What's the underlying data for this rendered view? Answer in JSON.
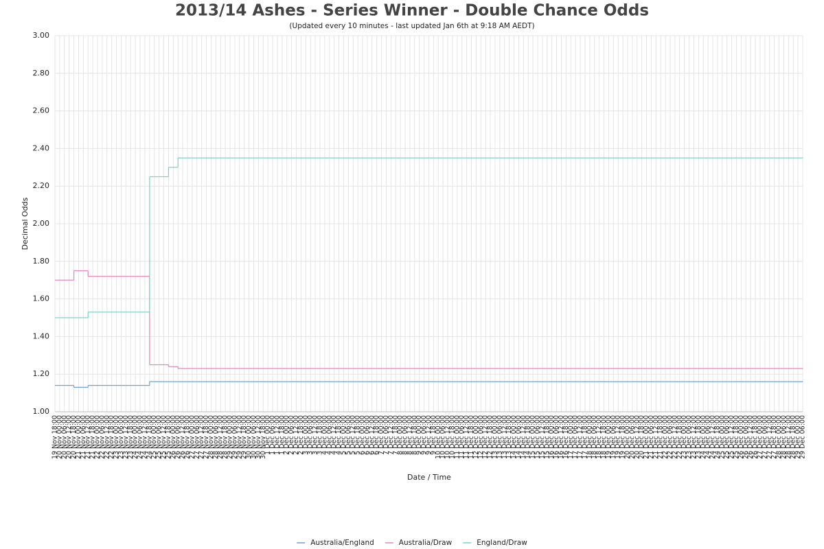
{
  "chart_data": {
    "type": "line",
    "step": true,
    "title": "2013/14 Ashes - Series Winner - Double Chance Odds",
    "subtitle": "(Updated every 10 minutes - last updated Jan 6th at 9:18 AM AEDT)",
    "y_label": "Decimal Odds",
    "x_label": "Date / Time",
    "categories": [
      "19 Nov 18:00",
      "20 Nov 00:00",
      "20 Nov 06:00",
      "20 Nov 12:00",
      "20 Nov 18:00",
      "21 Nov 00:00",
      "21 Nov 06:00",
      "21 Nov 12:00",
      "21 Nov 18:00",
      "22 Nov 00:00",
      "22 Nov 06:00",
      "22 Nov 12:00",
      "22 Nov 18:00",
      "23 Nov 00:00",
      "23 Nov 06:00",
      "23 Nov 12:00",
      "23 Nov 18:00",
      "24 Nov 00:00",
      "24 Nov 06:00",
      "24 Nov 12:00",
      "24 Nov 18:00",
      "25 Nov 00:00",
      "25 Nov 06:00",
      "25 Nov 12:00",
      "25 Nov 18:00",
      "26 Nov 00:00",
      "26 Nov 06:00",
      "26 Nov 12:00",
      "26 Nov 18:00",
      "27 Nov 00:00",
      "27 Nov 06:00",
      "27 Nov 12:00",
      "27 Nov 18:00",
      "28 Nov 00:00",
      "28 Nov 06:00",
      "28 Nov 12:00",
      "28 Nov 18:00",
      "29 Nov 00:00",
      "29 Nov 06:00",
      "29 Nov 12:00",
      "29 Nov 18:00",
      "30 Nov 00:00",
      "30 Nov 06:00",
      "30 Nov 12:00",
      "30 Nov 18:00",
      "1 Dec 00:00",
      "1 Dec 06:00",
      "1 Dec 12:00",
      "1 Dec 18:00",
      "2 Dec 00:00",
      "2 Dec 06:00",
      "2 Dec 12:00",
      "2 Dec 18:00",
      "3 Dec 00:00",
      "3 Dec 06:00",
      "3 Dec 12:00",
      "3 Dec 18:00",
      "4 Dec 00:00",
      "4 Dec 06:00",
      "4 Dec 12:00",
      "4 Dec 18:00",
      "5 Dec 00:00",
      "5 Dec 06:00",
      "5 Dec 12:00",
      "5 Dec 18:00",
      "6 Dec 00:00",
      "6 Dec 06:00",
      "6 Dec 12:00",
      "6 Dec 18:00",
      "7 Dec 00:00",
      "7 Dec 06:00",
      "7 Dec 12:00",
      "7 Dec 18:00",
      "8 Dec 00:00",
      "8 Dec 06:00",
      "8 Dec 12:00",
      "8 Dec 18:00",
      "9 Dec 00:00",
      "9 Dec 06:00",
      "9 Dec 12:00",
      "9 Dec 18:00",
      "10 Dec 00:00",
      "10 Dec 06:00",
      "10 Dec 12:00",
      "10 Dec 18:00",
      "11 Dec 00:00",
      "11 Dec 06:00",
      "11 Dec 12:00",
      "11 Dec 18:00",
      "12 Dec 00:00",
      "12 Dec 06:00",
      "12 Dec 12:00",
      "12 Dec 18:00",
      "13 Dec 00:00",
      "13 Dec 06:00",
      "13 Dec 12:00",
      "13 Dec 18:00",
      "14 Dec 00:00",
      "14 Dec 06:00",
      "14 Dec 12:00",
      "14 Dec 18:00",
      "15 Dec 00:00",
      "15 Dec 06:00",
      "15 Dec 12:00",
      "15 Dec 18:00",
      "16 Dec 00:00",
      "16 Dec 06:00",
      "16 Dec 12:00",
      "16 Dec 18:00",
      "17 Dec 00:00",
      "17 Dec 06:00",
      "17 Dec 12:00",
      "17 Dec 18:00",
      "18 Dec 00:00",
      "18 Dec 06:00",
      "18 Dec 12:00",
      "18 Dec 18:00",
      "19 Dec 00:00",
      "19 Dec 06:00",
      "19 Dec 12:00",
      "19 Dec 18:00",
      "20 Dec 00:00",
      "20 Dec 06:00",
      "20 Dec 12:00",
      "20 Dec 18:00",
      "21 Dec 00:00",
      "21 Dec 06:00",
      "21 Dec 12:00",
      "21 Dec 18:00",
      "22 Dec 00:00",
      "22 Dec 06:00",
      "22 Dec 12:00",
      "22 Dec 18:00",
      "23 Dec 00:00",
      "23 Dec 06:00",
      "23 Dec 12:00",
      "23 Dec 18:00",
      "24 Dec 00:00",
      "24 Dec 06:00",
      "24 Dec 12:00",
      "24 Dec 18:00",
      "25 Dec 00:00",
      "25 Dec 06:00",
      "25 Dec 12:00",
      "25 Dec 18:00",
      "26 Dec 00:00",
      "26 Dec 06:00",
      "26 Dec 12:00",
      "26 Dec 18:00",
      "27 Dec 00:00",
      "27 Dec 06:00",
      "27 Dec 12:00",
      "27 Dec 18:00",
      "28 Dec 00:00",
      "28 Dec 06:00",
      "28 Dec 12:00",
      "28 Dec 18:00",
      "29 Dec 00:00",
      "29 Dec 06:00"
    ],
    "series": [
      {
        "name": "Australia/England",
        "color": "#6a9fd6",
        "values": [
          1.14,
          1.14,
          1.14,
          1.14,
          1.13,
          1.13,
          1.13,
          1.14,
          1.14,
          1.14,
          1.14,
          1.14,
          1.14,
          1.14,
          1.14,
          1.14,
          1.14,
          1.14,
          1.14,
          1.14,
          1.16,
          1.16,
          1.16,
          1.16,
          1.16,
          1.16,
          1.16,
          1.16,
          1.16,
          1.16,
          1.16,
          1.16,
          1.16,
          1.16,
          1.16,
          1.16,
          1.16,
          1.16,
          1.16,
          1.16,
          1.16,
          1.16,
          1.16,
          1.16,
          1.16,
          1.16,
          1.16,
          1.16,
          1.16,
          1.16,
          1.16,
          1.16,
          1.16,
          1.16,
          1.16,
          1.16,
          1.16,
          1.16,
          1.16,
          1.16,
          1.16,
          1.16,
          1.16,
          1.16,
          1.16,
          1.16,
          1.16,
          1.16,
          1.16,
          1.16,
          1.16,
          1.16,
          1.16,
          1.16,
          1.16,
          1.16,
          1.16,
          1.16,
          1.16,
          1.16,
          1.16,
          1.16,
          1.16,
          1.16,
          1.16,
          1.16,
          1.16,
          1.16,
          1.16,
          1.16,
          1.16,
          1.16,
          1.16,
          1.16,
          1.16,
          1.16,
          1.16,
          1.16,
          1.16,
          1.16,
          1.16,
          1.16,
          1.16,
          1.16,
          1.16,
          1.16,
          1.16,
          1.16,
          1.16,
          1.16,
          1.16,
          1.16,
          1.16,
          1.16,
          1.16,
          1.16,
          1.16,
          1.16,
          1.16,
          1.16,
          1.16,
          1.16,
          1.16,
          1.16,
          1.16,
          1.16,
          1.16,
          1.16,
          1.16,
          1.16,
          1.16,
          1.16,
          1.16,
          1.16,
          1.16,
          1.16,
          1.16,
          1.16,
          1.16,
          1.16,
          1.16,
          1.16,
          1.16,
          1.16,
          1.16,
          1.16,
          1.16,
          1.16,
          1.16,
          1.16,
          1.16,
          1.16,
          1.16,
          1.16,
          1.16,
          1.16,
          1.16,
          1.16,
          1.16
        ]
      },
      {
        "name": "Australia/Draw",
        "color": "#e882b8",
        "values": [
          1.7,
          1.7,
          1.7,
          1.7,
          1.75,
          1.75,
          1.75,
          1.72,
          1.72,
          1.72,
          1.72,
          1.72,
          1.72,
          1.72,
          1.72,
          1.72,
          1.72,
          1.72,
          1.72,
          1.72,
          1.25,
          1.25,
          1.25,
          1.25,
          1.24,
          1.24,
          1.23,
          1.23,
          1.23,
          1.23,
          1.23,
          1.23,
          1.23,
          1.23,
          1.23,
          1.23,
          1.23,
          1.23,
          1.23,
          1.23,
          1.23,
          1.23,
          1.23,
          1.23,
          1.23,
          1.23,
          1.23,
          1.23,
          1.23,
          1.23,
          1.23,
          1.23,
          1.23,
          1.23,
          1.23,
          1.23,
          1.23,
          1.23,
          1.23,
          1.23,
          1.23,
          1.23,
          1.23,
          1.23,
          1.23,
          1.23,
          1.23,
          1.23,
          1.23,
          1.23,
          1.23,
          1.23,
          1.23,
          1.23,
          1.23,
          1.23,
          1.23,
          1.23,
          1.23,
          1.23,
          1.23,
          1.23,
          1.23,
          1.23,
          1.23,
          1.23,
          1.23,
          1.23,
          1.23,
          1.23,
          1.23,
          1.23,
          1.23,
          1.23,
          1.23,
          1.23,
          1.23,
          1.23,
          1.23,
          1.23,
          1.23,
          1.23,
          1.23,
          1.23,
          1.23,
          1.23,
          1.23,
          1.23,
          1.23,
          1.23,
          1.23,
          1.23,
          1.23,
          1.23,
          1.23,
          1.23,
          1.23,
          1.23,
          1.23,
          1.23,
          1.23,
          1.23,
          1.23,
          1.23,
          1.23,
          1.23,
          1.23,
          1.23,
          1.23,
          1.23,
          1.23,
          1.23,
          1.23,
          1.23,
          1.23,
          1.23,
          1.23,
          1.23,
          1.23,
          1.23,
          1.23,
          1.23,
          1.23,
          1.23,
          1.23,
          1.23,
          1.23,
          1.23,
          1.23,
          1.23,
          1.23,
          1.23,
          1.23,
          1.23,
          1.23,
          1.23,
          1.23,
          1.23,
          1.23
        ]
      },
      {
        "name": "England/Draw",
        "color": "#6fd8c6",
        "values": [
          1.5,
          1.5,
          1.5,
          1.5,
          1.5,
          1.5,
          1.5,
          1.53,
          1.53,
          1.53,
          1.53,
          1.53,
          1.53,
          1.53,
          1.53,
          1.53,
          1.53,
          1.53,
          1.53,
          1.53,
          2.25,
          2.25,
          2.25,
          2.25,
          2.3,
          2.3,
          2.35,
          2.35,
          2.35,
          2.35,
          2.35,
          2.35,
          2.35,
          2.35,
          2.35,
          2.35,
          2.35,
          2.35,
          2.35,
          2.35,
          2.35,
          2.35,
          2.35,
          2.35,
          2.35,
          2.35,
          2.35,
          2.35,
          2.35,
          2.35,
          2.35,
          2.35,
          2.35,
          2.35,
          2.35,
          2.35,
          2.35,
          2.35,
          2.35,
          2.35,
          2.35,
          2.35,
          2.35,
          2.35,
          2.35,
          2.35,
          2.35,
          2.35,
          2.35,
          2.35,
          2.35,
          2.35,
          2.35,
          2.35,
          2.35,
          2.35,
          2.35,
          2.35,
          2.35,
          2.35,
          2.35,
          2.35,
          2.35,
          2.35,
          2.35,
          2.35,
          2.35,
          2.35,
          2.35,
          2.35,
          2.35,
          2.35,
          2.35,
          2.35,
          2.35,
          2.35,
          2.35,
          2.35,
          2.35,
          2.35,
          2.35,
          2.35,
          2.35,
          2.35,
          2.35,
          2.35,
          2.35,
          2.35,
          2.35,
          2.35,
          2.35,
          2.35,
          2.35,
          2.35,
          2.35,
          2.35,
          2.35,
          2.35,
          2.35,
          2.35,
          2.35,
          2.35,
          2.35,
          2.35,
          2.35,
          2.35,
          2.35,
          2.35,
          2.35,
          2.35,
          2.35,
          2.35,
          2.35,
          2.35,
          2.35,
          2.35,
          2.35,
          2.35,
          2.35,
          2.35,
          2.35,
          2.35,
          2.35,
          2.35,
          2.35,
          2.35,
          2.35,
          2.35,
          2.35,
          2.35,
          2.35,
          2.35,
          2.35,
          2.35,
          2.35,
          2.35,
          2.35,
          2.35,
          2.35
        ]
      }
    ],
    "ylim": [
      1.0,
      3.0
    ],
    "yticks": [
      {
        "value": 1.0,
        "label": "1.00"
      },
      {
        "value": 1.2,
        "label": "1.20"
      },
      {
        "value": 1.4,
        "label": "1.40"
      },
      {
        "value": 1.6,
        "label": "1.60"
      },
      {
        "value": 1.8,
        "label": "1.80"
      },
      {
        "value": 2.0,
        "label": "2.00"
      },
      {
        "value": 2.2,
        "label": "2.20"
      },
      {
        "value": 2.4,
        "label": "2.40"
      },
      {
        "value": 2.6,
        "label": "2.60"
      },
      {
        "value": 2.8,
        "label": "2.80"
      },
      {
        "value": 3.0,
        "label": "3.00"
      }
    ],
    "grid": true,
    "legend": "bottom"
  }
}
